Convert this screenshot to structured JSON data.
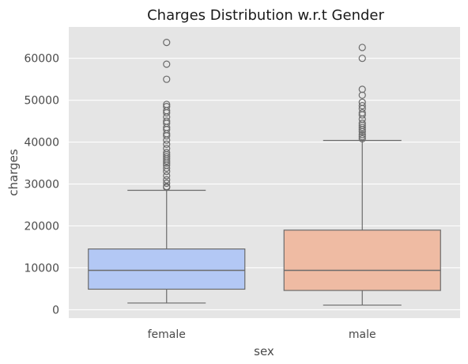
{
  "chart_data": {
    "type": "box",
    "title": "Charges Distribution w.r.t Gender",
    "xlabel": "sex",
    "ylabel": "charges",
    "categories": [
      "female",
      "male"
    ],
    "ylim": [
      -2000,
      67500
    ],
    "yticks": [
      0,
      10000,
      20000,
      30000,
      40000,
      50000,
      60000
    ],
    "grid": true,
    "colors": {
      "female": "#b3c8f5",
      "male": "#efbba3",
      "background": "#e5e5e5",
      "grid": "#ffffff",
      "line": "#6b6b6b"
    },
    "boxes": [
      {
        "category": "female",
        "whisker_low": 1600,
        "q1": 4900,
        "median": 9400,
        "q3": 14500,
        "whisker_high": 28500,
        "outliers": [
          29200,
          29400,
          30200,
          31000,
          32000,
          33000,
          33800,
          34500,
          35000,
          35500,
          36000,
          36500,
          37000,
          37500,
          38500,
          39500,
          40500,
          41500,
          42000,
          43000,
          43500,
          44500,
          45000,
          46000,
          47000,
          47500,
          48500,
          49000,
          55000,
          58600,
          63800
        ]
      },
      {
        "category": "male",
        "whisker_low": 1100,
        "q1": 4600,
        "median": 9400,
        "q3": 19000,
        "whisker_high": 40400,
        "outliers": [
          40800,
          41300,
          41800,
          42500,
          43000,
          43500,
          44000,
          44500,
          45500,
          46500,
          47000,
          48000,
          48700,
          49500,
          51200,
          52600,
          60000,
          62600
        ]
      }
    ]
  }
}
